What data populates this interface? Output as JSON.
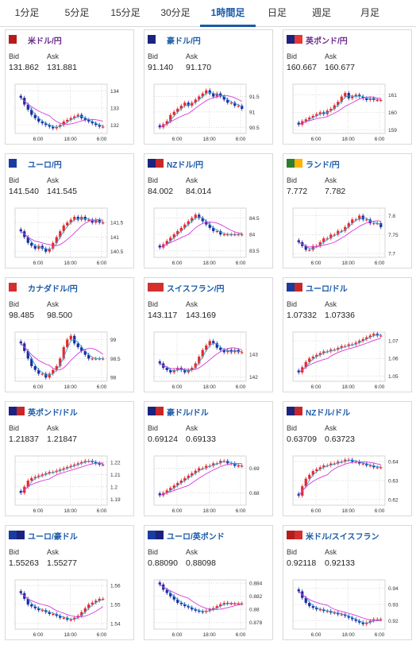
{
  "tabs": [
    {
      "label": "1分足",
      "active": false
    },
    {
      "label": "5分足",
      "active": false
    },
    {
      "label": "15分足",
      "active": false
    },
    {
      "label": "30分足",
      "active": false
    },
    {
      "label": "1時間足",
      "active": true
    },
    {
      "label": "日足",
      "active": false
    },
    {
      "label": "週足",
      "active": false
    },
    {
      "label": "月足",
      "active": false
    }
  ],
  "labels": {
    "bid": "Bid",
    "ask": "Ask"
  },
  "colors": {
    "up": "#e8262b",
    "down": "#1b2aa0",
    "ma_short": "#2aa5d8",
    "ma_long": "#d53ad8",
    "grid": "#cccccc",
    "accent": "#1a5aa8"
  },
  "x_ticks": [
    "6:00",
    "18:00",
    "6:00"
  ],
  "cards": [
    {
      "pair": "米ドル/円",
      "pair_color": "#6a2a8a",
      "flag": [
        "#b71c1c",
        "#ffffff"
      ],
      "bid": "131.862",
      "ask": "131.881",
      "y_ticks": [
        "134",
        "133",
        "132"
      ],
      "chart_data": {
        "type": "candlestick",
        "ylim": [
          131.5,
          134.4
        ],
        "values": [
          133.6,
          133.2,
          132.9,
          132.6,
          132.4,
          132.2,
          132.1,
          132.0,
          131.9,
          131.8,
          131.9,
          132.0,
          132.2,
          132.3,
          132.4,
          132.5,
          132.6,
          132.4,
          132.3,
          132.2,
          132.1,
          132.0,
          131.9,
          131.9
        ]
      }
    },
    {
      "pair": "豪ドル/円",
      "pair_color": "#1a5aa8",
      "flag": [
        "#1a237e",
        "#ffffff"
      ],
      "bid": "91.140",
      "ask": "91.170",
      "y_ticks": [
        "91.5",
        "91",
        "90.5"
      ],
      "chart_data": {
        "type": "candlestick",
        "ylim": [
          90.3,
          91.9
        ],
        "values": [
          90.5,
          90.6,
          90.7,
          90.9,
          91.0,
          91.1,
          91.2,
          91.3,
          91.2,
          91.3,
          91.4,
          91.5,
          91.6,
          91.7,
          91.6,
          91.5,
          91.6,
          91.5,
          91.4,
          91.3,
          91.3,
          91.2,
          91.2,
          91.1
        ]
      }
    },
    {
      "pair": "英ポンド/円",
      "pair_color": "#6a2a8a",
      "flag": [
        "#1a237e",
        "#e53935"
      ],
      "bid": "160.667",
      "ask": "160.677",
      "y_ticks": [
        "161",
        "160",
        "159"
      ],
      "chart_data": {
        "type": "candlestick",
        "ylim": [
          158.8,
          161.6
        ],
        "values": [
          159.3,
          159.5,
          159.6,
          159.7,
          159.8,
          159.9,
          160.0,
          159.9,
          160.1,
          160.2,
          160.4,
          160.6,
          160.9,
          161.1,
          160.8,
          160.9,
          161.0,
          160.9,
          160.8,
          160.7,
          160.8,
          160.7,
          160.7,
          160.7
        ]
      }
    },
    {
      "pair": "ユーロ/円",
      "pair_color": "#1a5aa8",
      "flag": [
        "#1a3c9e",
        "#ffffff"
      ],
      "bid": "141.540",
      "ask": "141.545",
      "y_ticks": [
        "141.5",
        "141",
        "140.5"
      ],
      "chart_data": {
        "type": "candlestick",
        "ylim": [
          140.3,
          142.0
        ],
        "values": [
          141.2,
          141.0,
          140.8,
          140.7,
          140.6,
          140.7,
          140.6,
          140.5,
          140.6,
          140.8,
          141.0,
          141.2,
          141.4,
          141.5,
          141.6,
          141.7,
          141.6,
          141.7,
          141.6,
          141.6,
          141.5,
          141.6,
          141.5,
          141.5
        ]
      }
    },
    {
      "pair": "NZドル/円",
      "pair_color": "#1a5aa8",
      "flag": [
        "#1a237e",
        "#c62828"
      ],
      "bid": "84.002",
      "ask": "84.014",
      "y_ticks": [
        "84.5",
        "84",
        "83.5"
      ],
      "chart_data": {
        "type": "candlestick",
        "ylim": [
          83.3,
          84.8
        ],
        "values": [
          83.6,
          83.7,
          83.8,
          83.9,
          84.0,
          84.1,
          84.2,
          84.3,
          84.4,
          84.5,
          84.6,
          84.5,
          84.4,
          84.3,
          84.2,
          84.1,
          84.1,
          84.0,
          84.0,
          84.0,
          84.0,
          84.0,
          84.0,
          84.0
        ]
      }
    },
    {
      "pair": "ランド/円",
      "pair_color": "#1a5aa8",
      "flag": [
        "#2e7d32",
        "#ffb300"
      ],
      "bid": "7.772",
      "ask": "7.782",
      "y_ticks": [
        "7.8",
        "7.75",
        "7.7"
      ],
      "chart_data": {
        "type": "candlestick",
        "ylim": [
          7.69,
          7.82
        ],
        "values": [
          7.73,
          7.72,
          7.71,
          7.71,
          7.72,
          7.72,
          7.73,
          7.74,
          7.74,
          7.75,
          7.75,
          7.76,
          7.76,
          7.77,
          7.78,
          7.79,
          7.79,
          7.8,
          7.79,
          7.79,
          7.78,
          7.78,
          7.78,
          7.77
        ]
      }
    },
    {
      "pair": "カナダドル/円",
      "pair_color": "#1a5aa8",
      "flag": [
        "#d32f2f",
        "#ffffff"
      ],
      "bid": "98.485",
      "ask": "98.500",
      "y_ticks": [
        "99",
        "98.5",
        "98"
      ],
      "chart_data": {
        "type": "candlestick",
        "ylim": [
          97.9,
          99.2
        ],
        "values": [
          98.9,
          98.7,
          98.5,
          98.3,
          98.2,
          98.1,
          98.1,
          98.0,
          98.1,
          98.2,
          98.3,
          98.5,
          98.8,
          99.0,
          99.1,
          98.9,
          98.8,
          98.7,
          98.6,
          98.5,
          98.5,
          98.5,
          98.5,
          98.5
        ]
      }
    },
    {
      "pair": "スイスフラン/円",
      "pair_color": "#1a5aa8",
      "flag": [
        "#d32f2f",
        "#d32f2f"
      ],
      "bid": "143.117",
      "ask": "143.169",
      "y_ticks": [
        "143",
        "142"
      ],
      "chart_data": {
        "type": "candlestick",
        "ylim": [
          141.8,
          144.0
        ],
        "values": [
          142.6,
          142.4,
          142.3,
          142.2,
          142.3,
          142.4,
          142.3,
          142.2,
          142.3,
          142.4,
          142.6,
          142.9,
          143.2,
          143.4,
          143.6,
          143.5,
          143.3,
          143.2,
          143.1,
          143.2,
          143.1,
          143.2,
          143.1,
          143.1
        ]
      }
    },
    {
      "pair": "ユーロ/ドル",
      "pair_color": "#1a5aa8",
      "flag": [
        "#1a3c9e",
        "#c62828"
      ],
      "bid": "1.07332",
      "ask": "1.07336",
      "y_ticks": [
        "1.07",
        "1.06",
        "1.05"
      ],
      "chart_data": {
        "type": "candlestick",
        "ylim": [
          1.047,
          1.075
        ],
        "values": [
          1.052,
          1.055,
          1.058,
          1.06,
          1.061,
          1.062,
          1.063,
          1.064,
          1.064,
          1.065,
          1.065,
          1.066,
          1.067,
          1.067,
          1.068,
          1.068,
          1.069,
          1.07,
          1.071,
          1.072,
          1.073,
          1.074,
          1.073,
          1.073
        ]
      }
    },
    {
      "pair": "英ポンド/ドル",
      "pair_color": "#1a5aa8",
      "flag": [
        "#1a237e",
        "#c62828"
      ],
      "bid": "1.21837",
      "ask": "1.21847",
      "y_ticks": [
        "1.22",
        "1.21",
        "1.2",
        "1.19"
      ],
      "chart_data": {
        "type": "candlestick",
        "ylim": [
          1.185,
          1.225
        ],
        "values": [
          1.195,
          1.2,
          1.205,
          1.207,
          1.208,
          1.209,
          1.21,
          1.211,
          1.212,
          1.212,
          1.213,
          1.214,
          1.215,
          1.216,
          1.217,
          1.218,
          1.219,
          1.22,
          1.221,
          1.221,
          1.22,
          1.219,
          1.218,
          1.218
        ]
      }
    },
    {
      "pair": "豪ドル/ドル",
      "pair_color": "#1a5aa8",
      "flag": [
        "#1a237e",
        "#c62828"
      ],
      "bid": "0.69124",
      "ask": "0.69133",
      "y_ticks": [
        "0.69",
        "0.68"
      ],
      "chart_data": {
        "type": "candlestick",
        "ylim": [
          0.675,
          0.695
        ],
        "values": [
          0.679,
          0.68,
          0.681,
          0.682,
          0.683,
          0.684,
          0.685,
          0.686,
          0.687,
          0.688,
          0.689,
          0.69,
          0.69,
          0.691,
          0.691,
          0.692,
          0.692,
          0.693,
          0.693,
          0.692,
          0.692,
          0.691,
          0.691,
          0.691
        ]
      }
    },
    {
      "pair": "NZドル/ドル",
      "pair_color": "#1a5aa8",
      "flag": [
        "#1a237e",
        "#c62828"
      ],
      "bid": "0.63709",
      "ask": "0.63723",
      "y_ticks": [
        "0.64",
        "0.63",
        "0.62"
      ],
      "chart_data": {
        "type": "candlestick",
        "ylim": [
          0.617,
          0.643
        ],
        "values": [
          0.622,
          0.627,
          0.631,
          0.633,
          0.635,
          0.636,
          0.637,
          0.638,
          0.638,
          0.639,
          0.639,
          0.64,
          0.64,
          0.641,
          0.641,
          0.64,
          0.64,
          0.639,
          0.639,
          0.638,
          0.638,
          0.637,
          0.637,
          0.637
        ]
      }
    },
    {
      "pair": "ユーロ/豪ドル",
      "pair_color": "#1a5aa8",
      "flag": [
        "#1a3c9e",
        "#1a237e"
      ],
      "bid": "1.55263",
      "ask": "1.55277",
      "y_ticks": [
        "1.56",
        "1.55",
        "1.54"
      ],
      "chart_data": {
        "type": "candlestick",
        "ylim": [
          1.537,
          1.563
        ],
        "values": [
          1.556,
          1.553,
          1.55,
          1.549,
          1.548,
          1.547,
          1.547,
          1.546,
          1.545,
          1.545,
          1.544,
          1.543,
          1.543,
          1.542,
          1.542,
          1.543,
          1.544,
          1.546,
          1.548,
          1.55,
          1.551,
          1.552,
          1.553,
          1.553
        ]
      }
    },
    {
      "pair": "ユーロ/英ポンド",
      "pair_color": "#1a5aa8",
      "flag": [
        "#1a3c9e",
        "#1a237e"
      ],
      "bid": "0.88090",
      "ask": "0.88098",
      "y_ticks": [
        "0.884",
        "0.882",
        "0.88",
        "0.878"
      ],
      "chart_data": {
        "type": "candlestick",
        "ylim": [
          0.877,
          0.8845
        ],
        "values": [
          0.8838,
          0.883,
          0.8825,
          0.882,
          0.8815,
          0.881,
          0.8808,
          0.8805,
          0.8803,
          0.88,
          0.8798,
          0.8797,
          0.8796,
          0.8798,
          0.88,
          0.8802,
          0.8805,
          0.8808,
          0.881,
          0.8809,
          0.8809,
          0.8809,
          0.8809,
          0.8809
        ]
      }
    },
    {
      "pair": "米ドル/スイスフラン",
      "pair_color": "#1a5aa8",
      "flag": [
        "#b71c1c",
        "#d32f2f"
      ],
      "bid": "0.92118",
      "ask": "0.92133",
      "y_ticks": [
        "0.94",
        "0.93",
        "0.92"
      ],
      "chart_data": {
        "type": "candlestick",
        "ylim": [
          0.915,
          0.945
        ],
        "values": [
          0.938,
          0.934,
          0.931,
          0.929,
          0.928,
          0.927,
          0.927,
          0.926,
          0.926,
          0.925,
          0.925,
          0.924,
          0.924,
          0.923,
          0.922,
          0.921,
          0.92,
          0.919,
          0.918,
          0.919,
          0.92,
          0.921,
          0.921,
          0.921
        ]
      }
    }
  ]
}
